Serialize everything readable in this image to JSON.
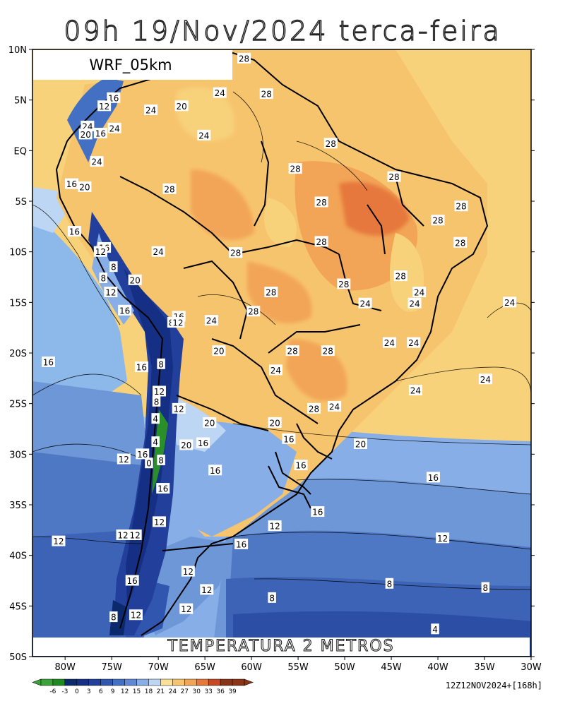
{
  "title": "09h 19/Nov/2024 terca-feira",
  "model_label": "WRF_05km",
  "field_label": "TEMPERATURA 2 METROS",
  "run_info": "12Z12NOV2024+[168h]",
  "lat_ticks": [
    "10N",
    "5N",
    "EQ",
    "5S",
    "10S",
    "15S",
    "20S",
    "25S",
    "30S",
    "35S",
    "40S",
    "45S",
    "50S"
  ],
  "lon_ticks": [
    "80W",
    "75W",
    "70W",
    "65W",
    "60W",
    "55W",
    "50W",
    "45W",
    "40W",
    "35W",
    "30W"
  ],
  "colorbar": {
    "labels": [
      "-6",
      "-3",
      "0",
      "3",
      "6",
      "9",
      "12",
      "15",
      "18",
      "21",
      "24",
      "27",
      "30",
      "33",
      "36",
      "39"
    ],
    "colors": [
      "#3aa33a",
      "#1f8a1f",
      "#0b2a6e",
      "#142f83",
      "#22409b",
      "#3056b0",
      "#4470c4",
      "#6088d4",
      "#87aee6",
      "#bcd6f3",
      "#fbe09a",
      "#f7c46e",
      "#f2a556",
      "#e6783c",
      "#c54a24",
      "#8a3416"
    ]
  },
  "contour_labels": [
    {
      "text": "28",
      "lon": -60.8,
      "lat": 9.1
    },
    {
      "text": "24",
      "lon": -63.4,
      "lat": 5.7
    },
    {
      "text": "28",
      "lon": -58.4,
      "lat": 5.6
    },
    {
      "text": "16",
      "lon": -74.8,
      "lat": 5.2
    },
    {
      "text": "12",
      "lon": -75.8,
      "lat": 4.4
    },
    {
      "text": "20",
      "lon": -67.5,
      "lat": 4.4
    },
    {
      "text": "24",
      "lon": -70.8,
      "lat": 4.0
    },
    {
      "text": "24",
      "lon": -77.6,
      "lat": 2.4
    },
    {
      "text": "20",
      "lon": -77.8,
      "lat": 1.6
    },
    {
      "text": "16",
      "lon": -76.2,
      "lat": 1.7
    },
    {
      "text": "24",
      "lon": -74.7,
      "lat": 2.2
    },
    {
      "text": "24",
      "lon": -65.1,
      "lat": 1.5
    },
    {
      "text": "28",
      "lon": -51.5,
      "lat": 0.7
    },
    {
      "text": "28",
      "lon": -55.3,
      "lat": -1.8
    },
    {
      "text": "24",
      "lon": -76.6,
      "lat": -1.1
    },
    {
      "text": "28",
      "lon": -44.7,
      "lat": -2.6
    },
    {
      "text": "16",
      "lon": -79.3,
      "lat": -3.3
    },
    {
      "text": "20",
      "lon": -77.9,
      "lat": -3.6
    },
    {
      "text": "28",
      "lon": -68.8,
      "lat": -3.8
    },
    {
      "text": "28",
      "lon": -52.5,
      "lat": -5.1
    },
    {
      "text": "28",
      "lon": -37.5,
      "lat": -5.5
    },
    {
      "text": "28",
      "lon": -40.0,
      "lat": -6.9
    },
    {
      "text": "16",
      "lon": -79.0,
      "lat": -8.0
    },
    {
      "text": "28",
      "lon": -52.5,
      "lat": -9.0
    },
    {
      "text": "28",
      "lon": -37.6,
      "lat": -9.1
    },
    {
      "text": "16",
      "lon": -75.8,
      "lat": -9.6
    },
    {
      "text": "12",
      "lon": -76.2,
      "lat": -10.0
    },
    {
      "text": "24",
      "lon": -70.0,
      "lat": -10.0
    },
    {
      "text": "28",
      "lon": -61.7,
      "lat": -10.1
    },
    {
      "text": "8",
      "lon": -74.8,
      "lat": -11.5
    },
    {
      "text": "8",
      "lon": -75.9,
      "lat": -12.6
    },
    {
      "text": "20",
      "lon": -72.5,
      "lat": -12.8
    },
    {
      "text": "28",
      "lon": -44.0,
      "lat": -12.4
    },
    {
      "text": "28",
      "lon": -50.1,
      "lat": -13.2
    },
    {
      "text": "24",
      "lon": -42.0,
      "lat": -14.0
    },
    {
      "text": "12",
      "lon": -75.1,
      "lat": -14.0
    },
    {
      "text": "28",
      "lon": -57.9,
      "lat": -14.0
    },
    {
      "text": "24",
      "lon": -47.8,
      "lat": -15.1
    },
    {
      "text": "24",
      "lon": -42.5,
      "lat": -15.1
    },
    {
      "text": "16",
      "lon": -73.6,
      "lat": -15.8
    },
    {
      "text": "28",
      "lon": -59.8,
      "lat": -15.9
    },
    {
      "text": "24",
      "lon": -32.3,
      "lat": -15.0
    },
    {
      "text": "16",
      "lon": -67.8,
      "lat": -16.4
    },
    {
      "text": "8",
      "lon": -68.6,
      "lat": -17.0
    },
    {
      "text": "12",
      "lon": -67.9,
      "lat": -17.0
    },
    {
      "text": "24",
      "lon": -64.3,
      "lat": -16.8
    },
    {
      "text": "24",
      "lon": -45.2,
      "lat": -19.0
    },
    {
      "text": "24",
      "lon": -42.6,
      "lat": -19.0
    },
    {
      "text": "20",
      "lon": -63.5,
      "lat": -19.8
    },
    {
      "text": "28",
      "lon": -55.6,
      "lat": -19.8
    },
    {
      "text": "28",
      "lon": -51.8,
      "lat": -19.8
    },
    {
      "text": "16",
      "lon": -81.8,
      "lat": -20.9
    },
    {
      "text": "16",
      "lon": -71.8,
      "lat": -21.4
    },
    {
      "text": "8",
      "lon": -69.7,
      "lat": -21.1
    },
    {
      "text": "24",
      "lon": -57.4,
      "lat": -21.7
    },
    {
      "text": "24",
      "lon": -34.9,
      "lat": -22.6
    },
    {
      "text": "12",
      "lon": -69.9,
      "lat": -23.8
    },
    {
      "text": "24",
      "lon": -42.4,
      "lat": -23.7
    },
    {
      "text": "8",
      "lon": -70.2,
      "lat": -24.8
    },
    {
      "text": "12",
      "lon": -67.8,
      "lat": -25.5
    },
    {
      "text": "28",
      "lon": -53.3,
      "lat": -25.5
    },
    {
      "text": "24",
      "lon": -51.1,
      "lat": -25.3
    },
    {
      "text": "4",
      "lon": -70.3,
      "lat": -26.5
    },
    {
      "text": "20",
      "lon": -64.5,
      "lat": -26.9
    },
    {
      "text": "20",
      "lon": -57.5,
      "lat": -26.9
    },
    {
      "text": "16",
      "lon": -56.0,
      "lat": -28.5
    },
    {
      "text": "20",
      "lon": -48.3,
      "lat": -29.0
    },
    {
      "text": "4",
      "lon": -70.3,
      "lat": -28.8
    },
    {
      "text": "20",
      "lon": -67.0,
      "lat": -29.1
    },
    {
      "text": "16",
      "lon": -65.2,
      "lat": -28.9
    },
    {
      "text": "16",
      "lon": -71.7,
      "lat": -30.0
    },
    {
      "text": "12",
      "lon": -73.7,
      "lat": -30.5
    },
    {
      "text": "0",
      "lon": -71.0,
      "lat": -30.9
    },
    {
      "text": "8",
      "lon": -69.7,
      "lat": -30.6
    },
    {
      "text": "16",
      "lon": -54.7,
      "lat": -31.1
    },
    {
      "text": "16",
      "lon": -63.9,
      "lat": -31.6
    },
    {
      "text": "16",
      "lon": -40.5,
      "lat": -32.3
    },
    {
      "text": "16",
      "lon": -69.5,
      "lat": -33.4
    },
    {
      "text": "16",
      "lon": -52.9,
      "lat": -35.7
    },
    {
      "text": "12",
      "lon": -69.9,
      "lat": -36.7
    },
    {
      "text": "12",
      "lon": -57.5,
      "lat": -37.1
    },
    {
      "text": "12",
      "lon": -73.8,
      "lat": -38.0
    },
    {
      "text": "12",
      "lon": -72.5,
      "lat": -38.0
    },
    {
      "text": "12",
      "lon": -80.7,
      "lat": -38.6
    },
    {
      "text": "12",
      "lon": -39.5,
      "lat": -38.3
    },
    {
      "text": "16",
      "lon": -61.1,
      "lat": -38.9
    },
    {
      "text": "12",
      "lon": -66.8,
      "lat": -41.6
    },
    {
      "text": "16",
      "lon": -72.8,
      "lat": -42.5
    },
    {
      "text": "8",
      "lon": -45.2,
      "lat": -42.8
    },
    {
      "text": "8",
      "lon": -34.9,
      "lat": -43.2
    },
    {
      "text": "12",
      "lon": -64.8,
      "lat": -43.4
    },
    {
      "text": "8",
      "lon": -57.8,
      "lat": -44.2
    },
    {
      "text": "12",
      "lon": -67.0,
      "lat": -45.3
    },
    {
      "text": "12",
      "lon": -72.4,
      "lat": -45.9
    },
    {
      "text": "8",
      "lon": -74.8,
      "lat": -46.1
    },
    {
      "text": "4",
      "lon": -40.3,
      "lat": -47.3
    }
  ]
}
